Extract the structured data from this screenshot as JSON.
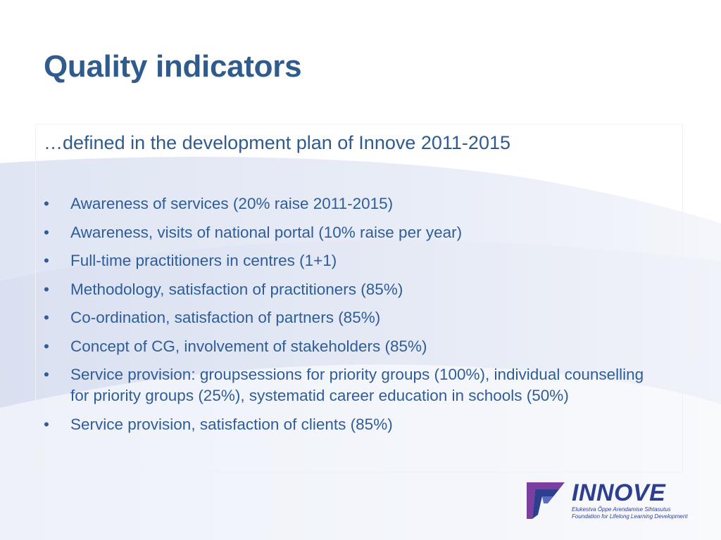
{
  "slide": {
    "title": "Quality indicators",
    "subtitle": "…defined in the development plan of Innove 2011-2015",
    "bullet_symbol": "•",
    "bullets": [
      "Awareness of services (20% raise 2011-2015)",
      "Awareness, visits of national portal (10% raise per year)",
      "Full-time practitioners in centres (1+1)",
      "Methodology, satisfaction of practitioners (85%)",
      "Co-ordination, satisfaction of partners (85%)",
      "Concept of CG, involvement of stakeholders (85%)",
      "Service provision: groupsessions for priority groups (100%), individual counselling for priority groups (25%), systematid career education in schools (50%)",
      "Service provision, satisfaction of clients (85%)"
    ]
  },
  "logo": {
    "name": "INNOVE",
    "line1": "Elukestva Õppe Arendamise Sihtasutus",
    "line2": "Foundation for Lifelong Learning Development",
    "icon": "innove-logo-icon"
  },
  "colors": {
    "title": "#2f5b8d",
    "text": "#2e5d99",
    "logo": "#2f3f8f",
    "logo_accent": "#7b3fa0",
    "background_swoosh": "#e6ebf6"
  }
}
